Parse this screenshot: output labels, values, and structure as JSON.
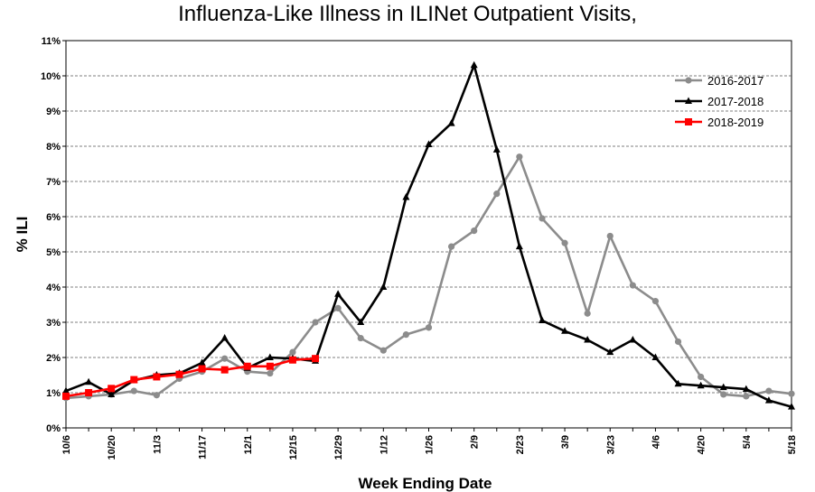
{
  "chart_data": {
    "type": "line",
    "title": "Influenza-Like Illness in ILINet  Outpatient Visits,",
    "xlabel": "Week Ending Date",
    "ylabel": "% ILI",
    "ylim": [
      0,
      11
    ],
    "yticks": [
      "0%",
      "1%",
      "2%",
      "3%",
      "4%",
      "5%",
      "6%",
      "7%",
      "8%",
      "9%",
      "10%",
      "11%"
    ],
    "xticks": [
      "10/6",
      "10/20",
      "11/3",
      "11/17",
      "12/1",
      "12/15",
      "12/29",
      "1/12",
      "1/26",
      "2/9",
      "2/23",
      "3/9",
      "3/23",
      "4/6",
      "4/20",
      "5/4",
      "5/18"
    ],
    "grid": "horizontal dashed",
    "legend_position": "top-right",
    "series": [
      {
        "name": "2016-2017",
        "color": "#8c8c8c",
        "marker": "circle",
        "values": [
          0.85,
          0.9,
          0.95,
          1.05,
          0.93,
          1.4,
          1.6,
          1.97,
          1.6,
          1.55,
          2.15,
          3.0,
          3.4,
          2.55,
          2.2,
          2.65,
          2.85,
          5.15,
          5.6,
          6.65,
          7.7,
          5.95,
          5.25,
          3.25,
          5.45,
          4.05,
          3.6,
          2.45,
          1.45,
          0.95,
          0.9,
          1.05,
          0.97
        ]
      },
      {
        "name": "2017-2018",
        "color": "#000000",
        "marker": "triangle",
        "values": [
          1.05,
          1.3,
          0.95,
          1.35,
          1.5,
          1.55,
          1.85,
          2.55,
          1.7,
          2.0,
          1.97,
          1.9,
          3.8,
          3.0,
          4.0,
          6.55,
          8.05,
          8.65,
          10.3,
          7.9,
          5.15,
          3.05,
          2.75,
          2.5,
          2.15,
          2.5,
          2.0,
          1.25,
          1.2,
          1.15,
          1.1,
          0.78,
          0.6
        ]
      },
      {
        "name": "2018-2019",
        "color": "#ff0000",
        "marker": "square",
        "values": [
          0.9,
          1.0,
          1.12,
          1.37,
          1.45,
          1.52,
          1.68,
          1.65,
          1.75,
          1.75,
          1.93,
          1.97
        ]
      }
    ]
  }
}
